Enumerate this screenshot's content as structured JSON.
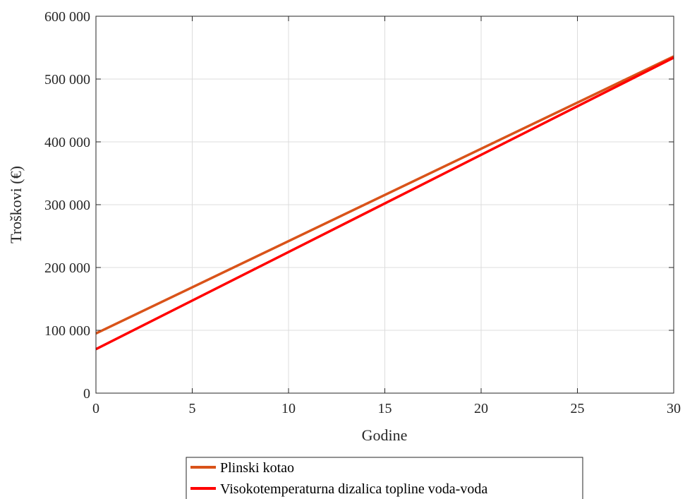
{
  "chart_data": {
    "type": "line",
    "xlabel": "Godine",
    "ylabel": "Troškovi (€)",
    "xlim": [
      0,
      30
    ],
    "ylim": [
      0,
      600000
    ],
    "xticks": [
      0,
      5,
      10,
      15,
      20,
      25,
      30
    ],
    "xtick_labels": [
      "0",
      "5",
      "10",
      "15",
      "20",
      "25",
      "30"
    ],
    "yticks": [
      0,
      100000,
      200000,
      300000,
      400000,
      500000,
      600000
    ],
    "ytick_labels": [
      "0",
      "100 000",
      "200 000",
      "300 000",
      "400 000",
      "500 000",
      "600 000"
    ],
    "grid": true,
    "legend_position": "bottom-outside",
    "series": [
      {
        "name": "Plinski kotao",
        "color": "#d95319",
        "x": [
          0,
          30
        ],
        "y": [
          95000,
          536000
        ]
      },
      {
        "name": "Visokotemperaturna dizalica topline voda-voda",
        "color": "#ff0000",
        "x": [
          0,
          30
        ],
        "y": [
          70000,
          534000
        ]
      }
    ]
  }
}
